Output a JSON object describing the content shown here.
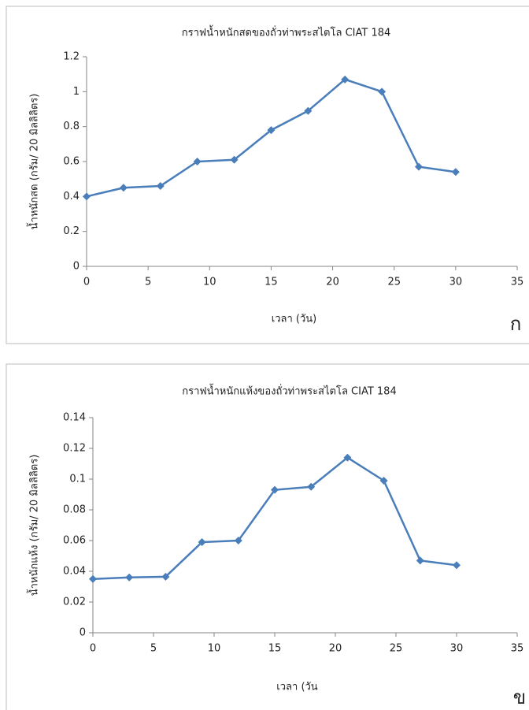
{
  "chart_data": [
    {
      "type": "line",
      "title": "กราฟน้ำหนักสดของถั่วท่าพระสไตโล CIAT 184",
      "x_label": "เวลา (วัน)",
      "y_label": "น้ำหนักสด (กรัม/ 20 มิลลิลิตร)",
      "panel_label": "ก",
      "x": [
        0,
        3,
        6,
        9,
        12,
        15,
        18,
        21,
        24,
        27,
        30
      ],
      "series": [
        {
          "color": "#4a7ebb",
          "values": [
            0.4,
            0.45,
            0.46,
            0.6,
            0.61,
            0.78,
            0.89,
            1.07,
            1.0,
            0.57,
            0.54
          ]
        }
      ],
      "xlim": [
        0,
        35
      ],
      "xticks": [
        0,
        5,
        10,
        15,
        20,
        25,
        30,
        35
      ],
      "ylim": [
        0,
        1.2
      ],
      "yticks": [
        0,
        0.2,
        0.4,
        0.6,
        0.8,
        1,
        1.2
      ]
    },
    {
      "type": "line",
      "title": "กราฟน้ำหนักแห้งของถั่วท่าพระสไตโล CIAT 184",
      "x_label": "เวลา (วัน",
      "y_label": "น้ำหนักแห้ง (กรัม/ 20 มิลลิลิตร)",
      "panel_label": "ข",
      "x": [
        0,
        3,
        6,
        9,
        12,
        15,
        18,
        21,
        24,
        27,
        30
      ],
      "series": [
        {
          "color": "#4a7ebb",
          "values": [
            0.035,
            0.036,
            0.0365,
            0.059,
            0.06,
            0.093,
            0.095,
            0.114,
            0.099,
            0.047,
            0.044
          ]
        }
      ],
      "xlim": [
        0,
        35
      ],
      "xticks": [
        0,
        5,
        10,
        15,
        20,
        25,
        30,
        35
      ],
      "ylim": [
        0,
        0.14
      ],
      "yticks": [
        0,
        0.02,
        0.04,
        0.06,
        0.08,
        0.1,
        0.12,
        0.14
      ]
    }
  ]
}
